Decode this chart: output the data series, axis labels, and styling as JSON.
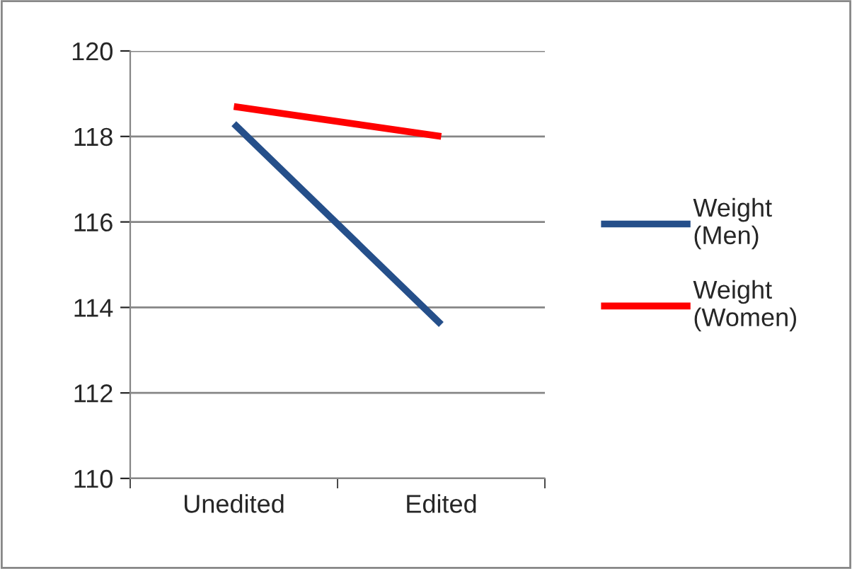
{
  "chart_data": {
    "type": "line",
    "categories": [
      "Unedited",
      "Edited"
    ],
    "series": [
      {
        "name": "Weight (Men)",
        "color": "#254f8a",
        "values": [
          118.3,
          113.6
        ]
      },
      {
        "name": "Weight (Women)",
        "color": "#ff0000",
        "values": [
          118.7,
          118.0
        ]
      }
    ],
    "ylim": [
      110,
      120
    ],
    "yticks": [
      110,
      112,
      114,
      116,
      118,
      120
    ],
    "grid": "y",
    "legend": "right",
    "marker": "none",
    "line_style": "solid"
  }
}
